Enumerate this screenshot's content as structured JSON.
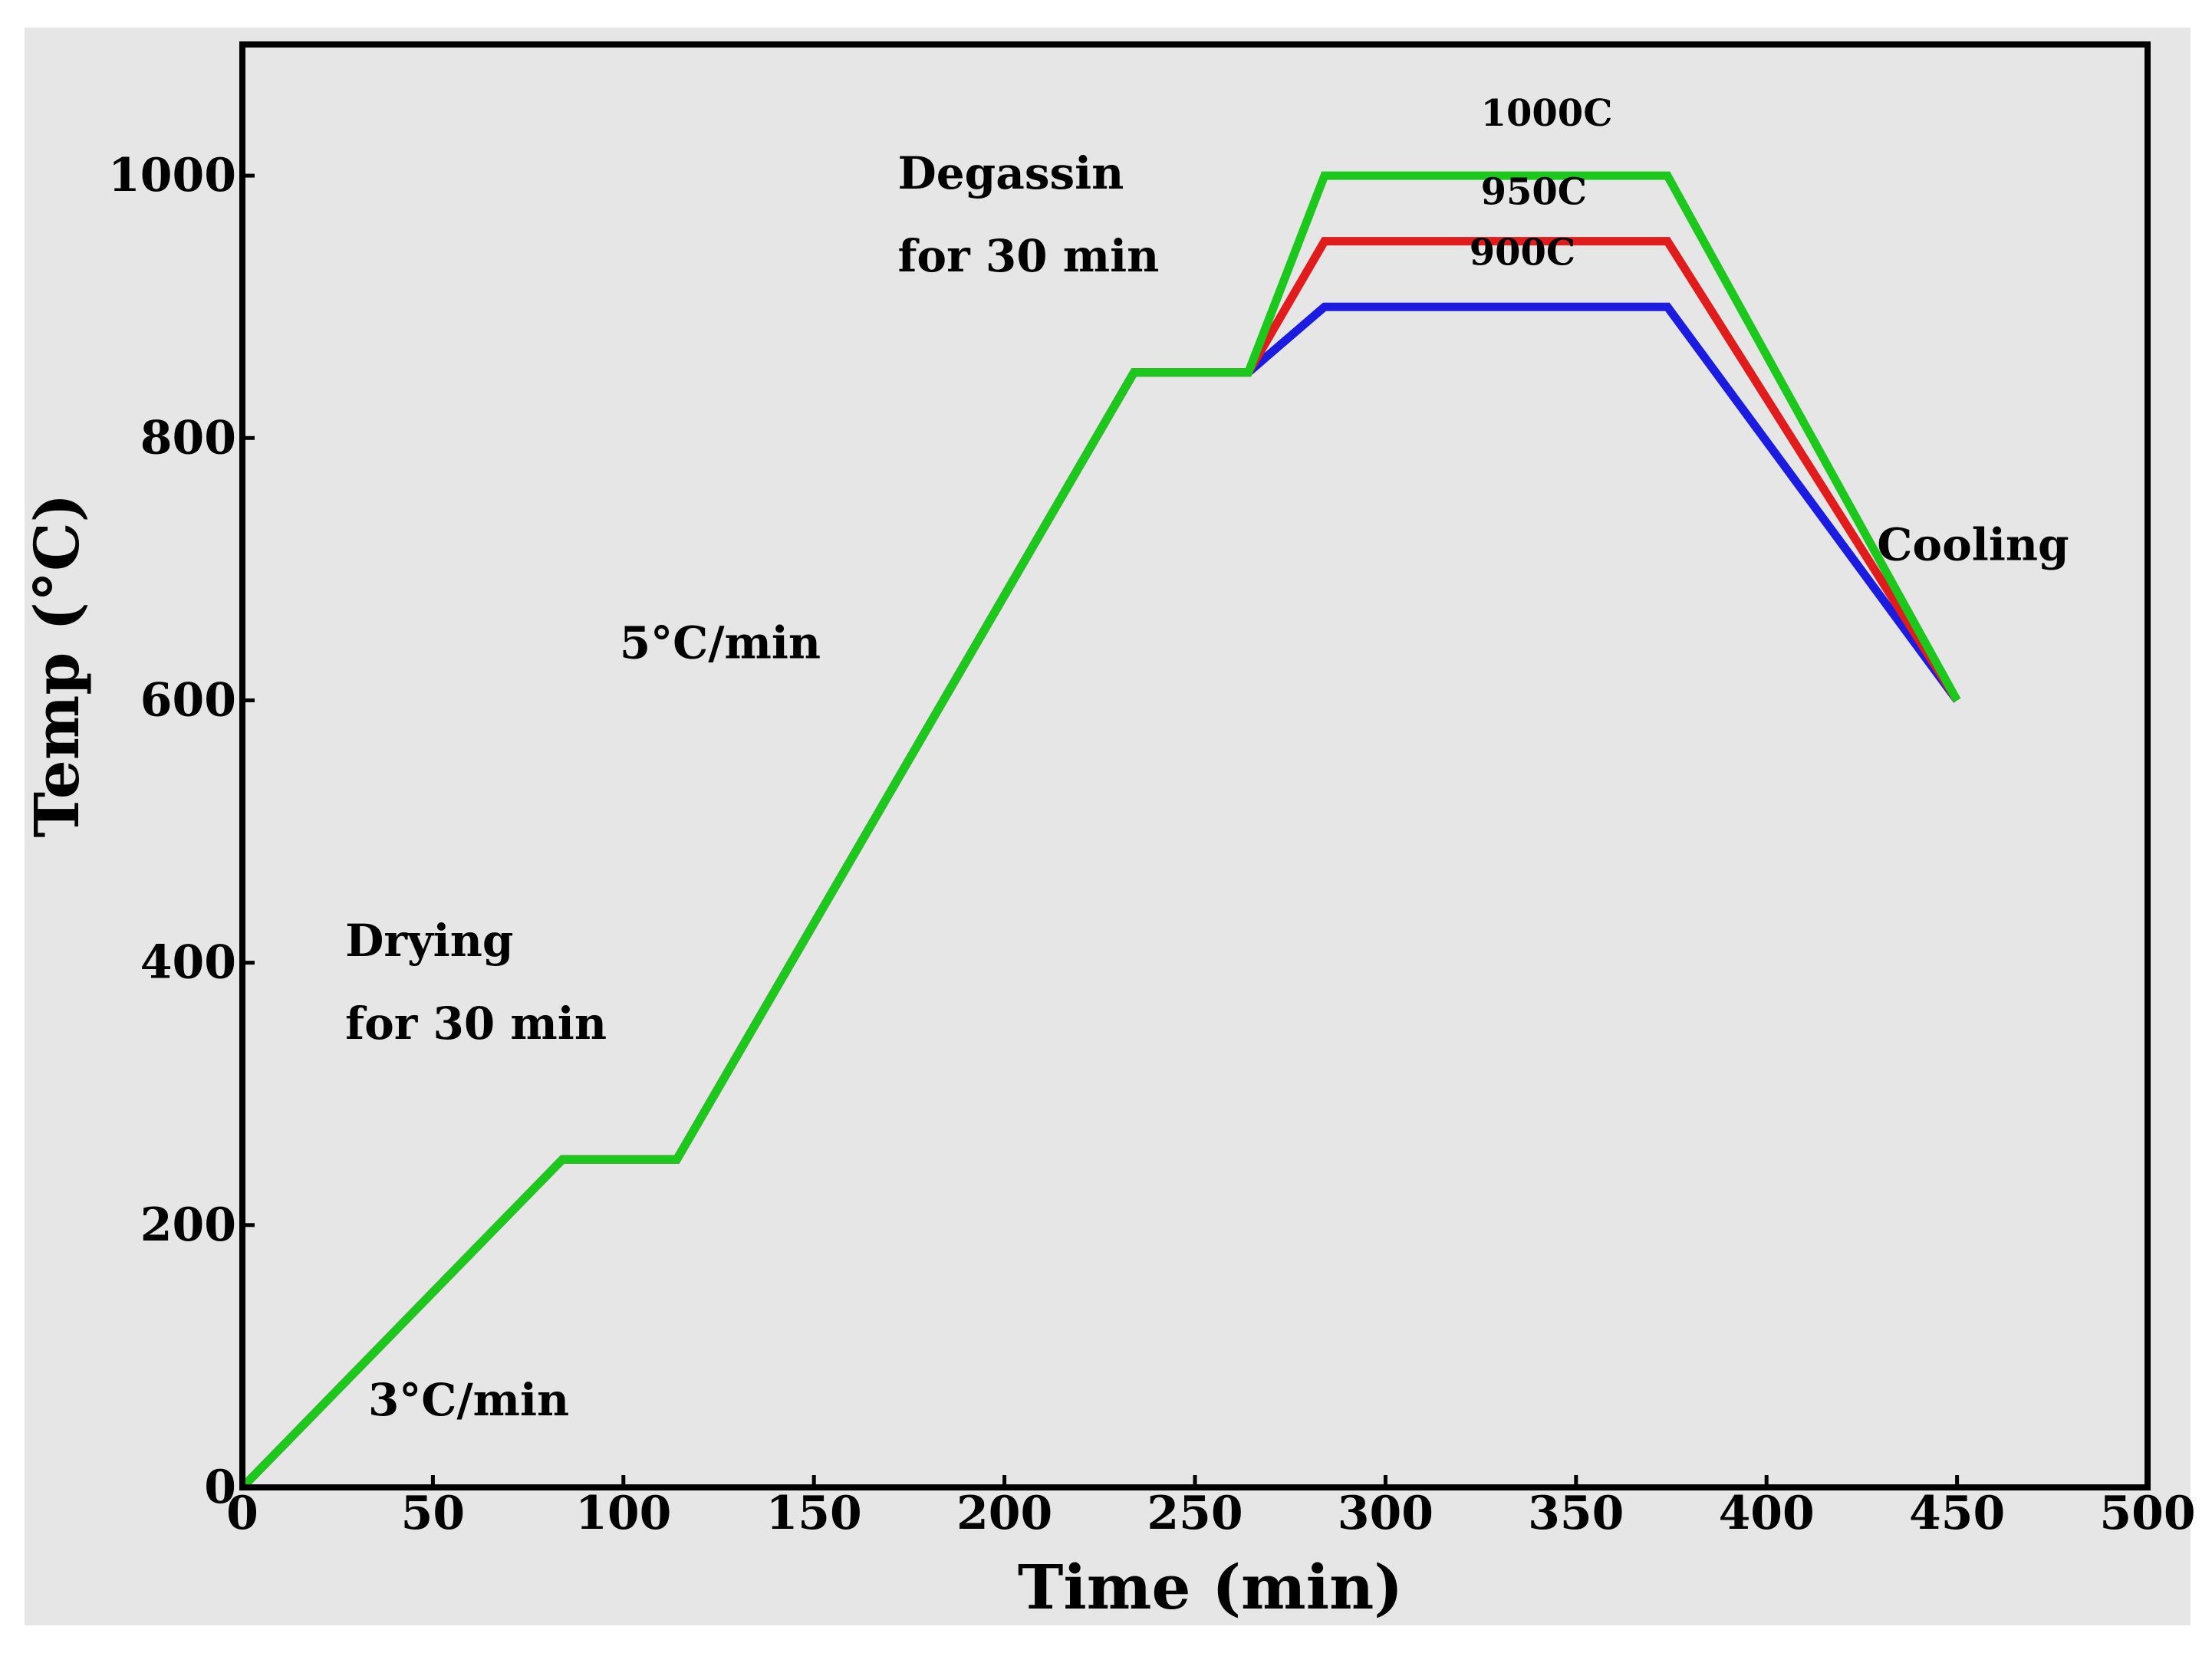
{
  "chart_data": {
    "type": "line",
    "title": "",
    "xlabel": "Time (min)",
    "ylabel": "Temp (°C)",
    "xlim": [
      0,
      500
    ],
    "ylim": [
      0,
      1100
    ],
    "xticks": [
      0,
      50,
      100,
      150,
      200,
      250,
      300,
      350,
      400,
      450,
      500
    ],
    "yticks": [
      0,
      200,
      400,
      600,
      800,
      1000
    ],
    "grid": false,
    "series": [
      {
        "name": "900C",
        "color": "#1c1ce0",
        "x": [
          0,
          84,
          114,
          234,
          264,
          284,
          374,
          450
        ],
        "y": [
          0,
          250,
          250,
          850,
          850,
          900,
          900,
          600
        ]
      },
      {
        "name": "950C",
        "color": "#e01c1c",
        "x": [
          0,
          84,
          114,
          234,
          264,
          284,
          374,
          450
        ],
        "y": [
          0,
          250,
          250,
          850,
          850,
          950,
          950,
          600
        ]
      },
      {
        "name": "1000C",
        "color": "#1cc81c",
        "x": [
          0,
          84,
          114,
          234,
          264,
          284,
          374,
          450
        ],
        "y": [
          0,
          250,
          250,
          850,
          850,
          1000,
          1000,
          600
        ]
      }
    ],
    "series_labels": [
      {
        "text": "1000C",
        "x": 325,
        "y": 1038
      },
      {
        "text": "950C",
        "x": 325,
        "y": 978
      },
      {
        "text": "900C",
        "x": 322,
        "y": 932
      }
    ],
    "annotations": [
      {
        "text": "3°C/min",
        "x": 33,
        "y": 55
      },
      {
        "text": "Drying",
        "x": 27,
        "y": 405
      },
      {
        "text": "for 30 min",
        "x": 27,
        "y": 342
      },
      {
        "text": "5°C/min",
        "x": 99,
        "y": 632
      },
      {
        "text": "Degassin",
        "x": 172,
        "y": 990
      },
      {
        "text": "for 30 min",
        "x": 172,
        "y": 927
      },
      {
        "text": "Cooling",
        "x": 429,
        "y": 707
      }
    ]
  }
}
